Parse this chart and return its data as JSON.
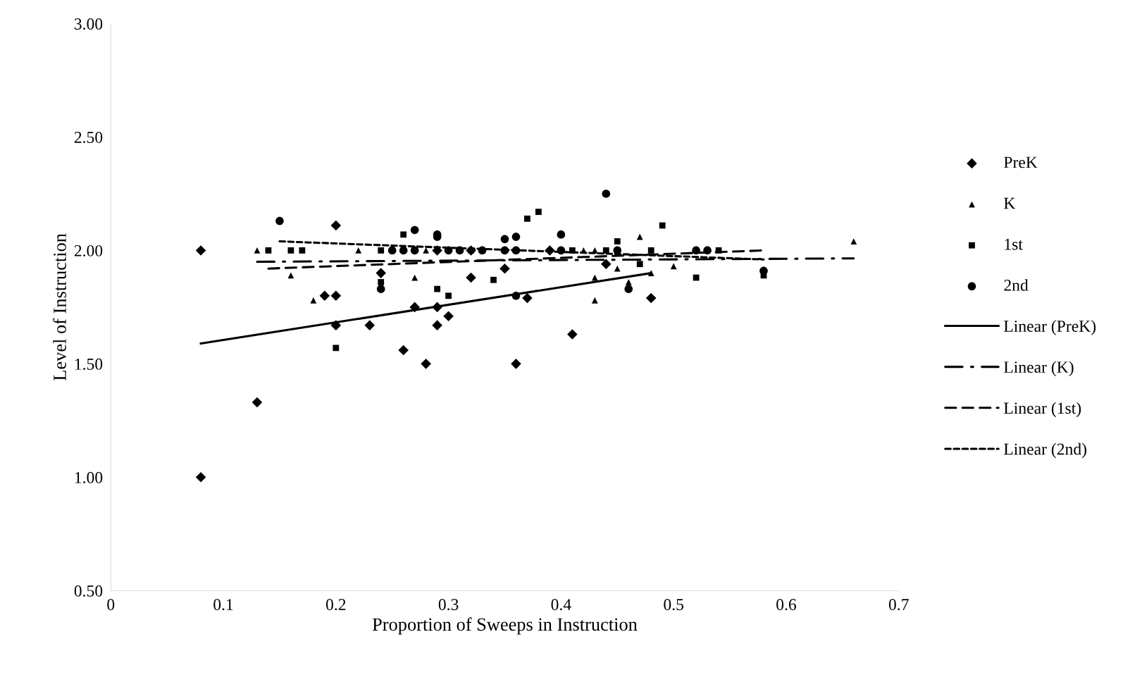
{
  "chart_data": {
    "type": "scatter",
    "xlabel": "Proportion of Sweeps in Instruction",
    "ylabel": "Level of Instruction",
    "xlim": [
      0,
      0.7
    ],
    "xticks": [
      0,
      0.1,
      0.2,
      0.3,
      0.4,
      0.5,
      0.6,
      0.7
    ],
    "ylim": [
      0.5,
      3.0
    ],
    "yticks": [
      {
        "value": 0.5,
        "label": "0.50"
      },
      {
        "value": 1.0,
        "label": "1.00"
      },
      {
        "value": 1.5,
        "label": "1.50"
      },
      {
        "value": 2.0,
        "label": "2.00"
      },
      {
        "value": 2.5,
        "label": "2.50"
      },
      {
        "value": 3.0,
        "label": "3.00"
      }
    ],
    "grid": false,
    "legend": "right",
    "series": [
      {
        "name": "PreK",
        "marker": "diamond",
        "color": "#000000",
        "x": [
          0.08,
          0.08,
          0.13,
          0.19,
          0.2,
          0.2,
          0.2,
          0.23,
          0.24,
          0.26,
          0.27,
          0.28,
          0.29,
          0.29,
          0.29,
          0.3,
          0.32,
          0.32,
          0.35,
          0.36,
          0.37,
          0.39,
          0.41,
          0.44,
          0.48
        ],
        "values": [
          2.0,
          1.0,
          1.33,
          1.8,
          1.8,
          2.11,
          1.67,
          1.67,
          1.9,
          1.56,
          1.75,
          1.5,
          2.0,
          1.75,
          1.67,
          1.71,
          1.88,
          2.0,
          1.92,
          1.5,
          1.79,
          2.0,
          1.63,
          1.94,
          1.79
        ]
      },
      {
        "name": "K",
        "marker": "triangle",
        "color": "#000000",
        "x": [
          0.13,
          0.16,
          0.18,
          0.22,
          0.27,
          0.28,
          0.32,
          0.42,
          0.43,
          0.43,
          0.43,
          0.45,
          0.46,
          0.47,
          0.48,
          0.5,
          0.66
        ],
        "values": [
          2.0,
          1.89,
          1.78,
          2.0,
          1.88,
          2.0,
          2.0,
          2.0,
          2.0,
          1.88,
          1.78,
          1.92,
          1.86,
          2.06,
          1.9,
          1.93,
          2.04
        ]
      },
      {
        "name": "1st",
        "marker": "square",
        "color": "#000000",
        "x": [
          0.14,
          0.16,
          0.17,
          0.2,
          0.24,
          0.24,
          0.26,
          0.29,
          0.3,
          0.34,
          0.37,
          0.38,
          0.41,
          0.44,
          0.45,
          0.47,
          0.48,
          0.49,
          0.52,
          0.54,
          0.58
        ],
        "values": [
          2.0,
          2.0,
          2.0,
          1.57,
          2.0,
          1.86,
          2.07,
          1.83,
          1.8,
          1.87,
          2.14,
          2.17,
          2.0,
          2.0,
          2.04,
          1.94,
          2.0,
          2.11,
          1.88,
          2.0,
          1.89
        ]
      },
      {
        "name": "2nd",
        "marker": "circle",
        "color": "#000000",
        "x": [
          0.15,
          0.24,
          0.25,
          0.26,
          0.27,
          0.27,
          0.29,
          0.29,
          0.3,
          0.31,
          0.33,
          0.35,
          0.35,
          0.36,
          0.36,
          0.36,
          0.4,
          0.4,
          0.44,
          0.45,
          0.46,
          0.52,
          0.53,
          0.58
        ],
        "values": [
          2.13,
          1.83,
          2.0,
          2.0,
          2.09,
          2.0,
          2.07,
          2.06,
          2.0,
          2.0,
          2.0,
          2.05,
          2.0,
          2.06,
          2.0,
          1.8,
          2.07,
          2.0,
          2.25,
          2.0,
          1.83,
          2.0,
          2.0,
          1.91
        ]
      },
      {
        "name": "Linear (PreK)",
        "type": "line",
        "marker": "none",
        "line_style": "solid",
        "color": "#000000",
        "x": [
          0.08,
          0.48
        ],
        "values": [
          1.59,
          1.9
        ]
      },
      {
        "name": "Linear (K)",
        "type": "line",
        "marker": "none",
        "line_style": "dashdot",
        "color": "#000000",
        "x": [
          0.13,
          0.66
        ],
        "values": [
          1.95,
          1.965
        ]
      },
      {
        "name": "Linear (1st)",
        "type": "line",
        "marker": "none",
        "line_style": "dashed",
        "color": "#000000",
        "x": [
          0.14,
          0.58
        ],
        "values": [
          1.92,
          2.0
        ]
      },
      {
        "name": "Linear (2nd)",
        "type": "line",
        "marker": "none",
        "line_style": "dotted",
        "color": "#000000",
        "x": [
          0.15,
          0.58
        ],
        "values": [
          2.04,
          1.96
        ]
      }
    ]
  }
}
